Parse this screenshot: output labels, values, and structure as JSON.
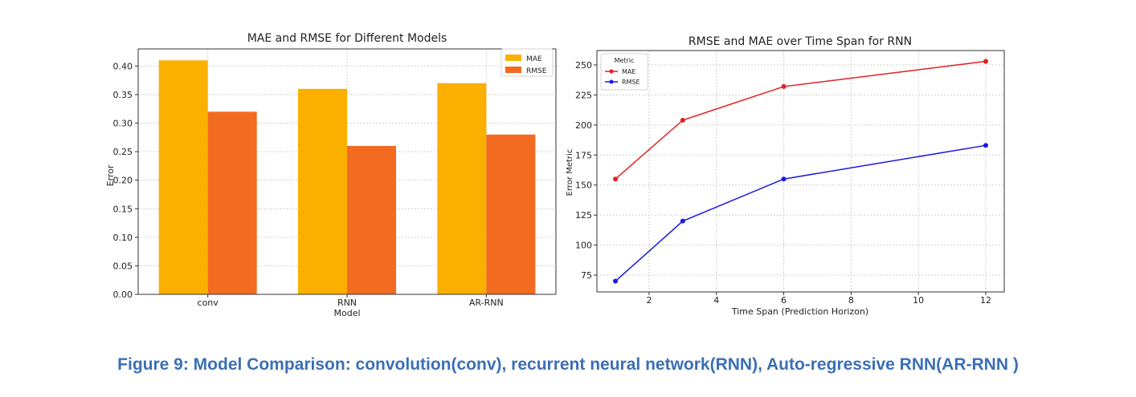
{
  "caption": "Figure 9: Model Comparison: convolution(conv), recurrent neural network(RNN), Auto-regressive RNN(AR-RNN )",
  "chart_data": [
    {
      "type": "bar",
      "title": "MAE and RMSE for Different Models",
      "xlabel": "Model",
      "ylabel": "Error",
      "categories": [
        "conv",
        "RNN",
        "AR-RNN"
      ],
      "series": [
        {
          "name": "MAE",
          "values": [
            0.41,
            0.36,
            0.37
          ],
          "color": "#fbb000"
        },
        {
          "name": "RMSE",
          "values": [
            0.32,
            0.26,
            0.28
          ],
          "color": "#f26b21"
        }
      ],
      "ylim": [
        0,
        0.43
      ],
      "yticks": [
        "0.00",
        "0.05",
        "0.10",
        "0.15",
        "0.20",
        "0.25",
        "0.30",
        "0.35",
        "0.40"
      ],
      "grid": true,
      "legend": "top-right"
    },
    {
      "type": "line",
      "title": "RMSE and MAE over Time Span for RNN",
      "xlabel": "Time Span (Prediction Horizon)",
      "ylabel": "Error Metric",
      "legend_title": "Metric",
      "x": [
        1,
        3,
        6,
        12
      ],
      "series": [
        {
          "name": "MAE",
          "values": [
            155,
            204,
            232,
            253
          ],
          "color": "#e02020"
        },
        {
          "name": "RMSE",
          "values": [
            70,
            120,
            155,
            183
          ],
          "color": "#1a1ae0"
        }
      ],
      "xlim": [
        0.45,
        12.55
      ],
      "ylim": [
        61,
        262
      ],
      "xticks": [
        "2",
        "4",
        "6",
        "8",
        "10",
        "12"
      ],
      "yticks": [
        "75",
        "100",
        "125",
        "150",
        "175",
        "200",
        "225",
        "250"
      ],
      "grid": true,
      "legend": "top-left"
    }
  ]
}
